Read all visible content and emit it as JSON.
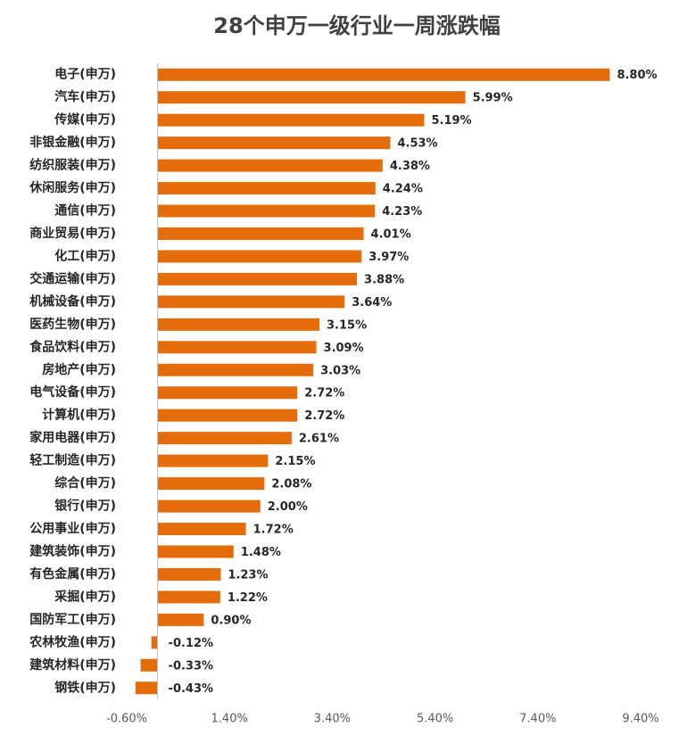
{
  "chart_data": {
    "type": "hbar",
    "title": "28个申万一级行业一周涨跌幅",
    "categories": [
      "电子(申万)",
      "汽车(申万)",
      "传媒(申万)",
      "非银金融(申万)",
      "纺织服装(申万)",
      "休闲服务(申万)",
      "通信(申万)",
      "商业贸易(申万)",
      "化工(申万)",
      "交通运输(申万)",
      "机械设备(申万)",
      "医药生物(申万)",
      "食品饮料(申万)",
      "房地产(申万)",
      "电气设备(申万)",
      "计算机(申万)",
      "家用电器(申万)",
      "轻工制造(申万)",
      "综合(申万)",
      "银行(申万)",
      "公用事业(申万)",
      "建筑装饰(申万)",
      "有色金属(申万)",
      "采掘(申万)",
      "国防军工(申万)",
      "农林牧渔(申万)",
      "建筑材料(申万)",
      "钢铁(申万)"
    ],
    "values": [
      8.8,
      5.99,
      5.19,
      4.53,
      4.38,
      4.24,
      4.23,
      4.01,
      3.97,
      3.88,
      3.64,
      3.15,
      3.09,
      3.03,
      2.72,
      2.72,
      2.61,
      2.15,
      2.08,
      2.0,
      1.72,
      1.48,
      1.23,
      1.22,
      0.9,
      -0.12,
      -0.33,
      -0.43
    ],
    "value_labels": [
      "8.80%",
      "5.99%",
      "5.19%",
      "4.53%",
      "4.38%",
      "4.24%",
      "4.23%",
      "4.01%",
      "3.97%",
      "3.88%",
      "3.64%",
      "3.15%",
      "3.09%",
      "3.03%",
      "2.72%",
      "2.72%",
      "2.61%",
      "2.15%",
      "2.08%",
      "2.00%",
      "1.72%",
      "1.48%",
      "1.23%",
      "1.22%",
      "0.90%",
      "-0.12%",
      "-0.33%",
      "-0.43%"
    ],
    "color": "#e46c0a",
    "xlim": [
      -0.6,
      9.4
    ],
    "xticks": [
      {
        "value": -0.6,
        "label": "-0.60%"
      },
      {
        "value": 1.4,
        "label": "1.40%"
      },
      {
        "value": 3.4,
        "label": "3.40%"
      },
      {
        "value": 5.4,
        "label": "5.40%"
      },
      {
        "value": 7.4,
        "label": "7.40%"
      },
      {
        "value": 9.4,
        "label": "9.40%"
      }
    ],
    "grid": false
  }
}
